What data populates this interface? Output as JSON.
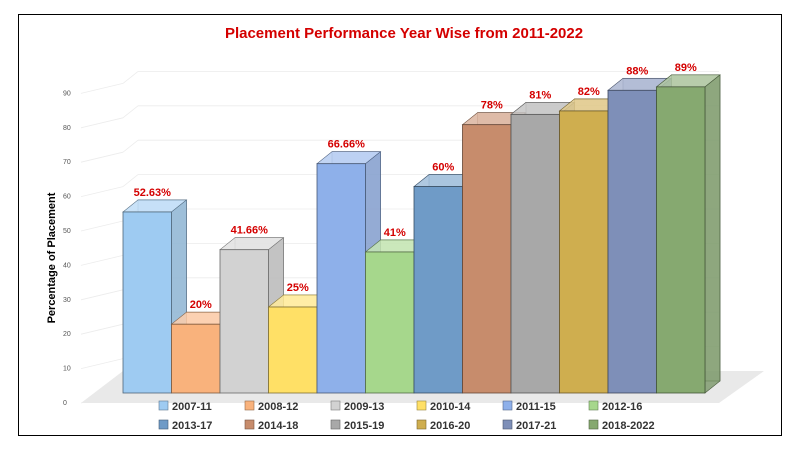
{
  "chart_data": {
    "type": "bar",
    "title": "Placement Performance Year Wise from 2011-2022",
    "ylabel": "Percentage of Placement",
    "xlabel": "",
    "ylim": [
      0,
      90
    ],
    "yticks": [
      0,
      10,
      20,
      30,
      40,
      50,
      60,
      70,
      80,
      90
    ],
    "grid": true,
    "legend_position": "bottom",
    "categories": [
      "2007-11",
      "2008-12",
      "2009-13",
      "2010-14",
      "2011-15",
      "2012-16",
      "2013-17",
      "2014-18",
      "2015-19",
      "2016-20",
      "2017-21",
      "2018-2022"
    ],
    "values": [
      52.63,
      20,
      41.66,
      25,
      66.66,
      41,
      60,
      78,
      81,
      82,
      88,
      89
    ],
    "data_labels": [
      "52.63%",
      "20%",
      "41.66%",
      "25%",
      "66.66%",
      "41%",
      "60%",
      "78%",
      "81%",
      "82%",
      "88%",
      "89%"
    ],
    "colors": [
      "#9ecbf2",
      "#f9b27c",
      "#d2d2d2",
      "#ffe066",
      "#8eb0ea",
      "#a6d78c",
      "#6f9bc7",
      "#c78c6c",
      "#a8a8a8",
      "#cfae4f",
      "#7e8fb8",
      "#86a970"
    ]
  }
}
